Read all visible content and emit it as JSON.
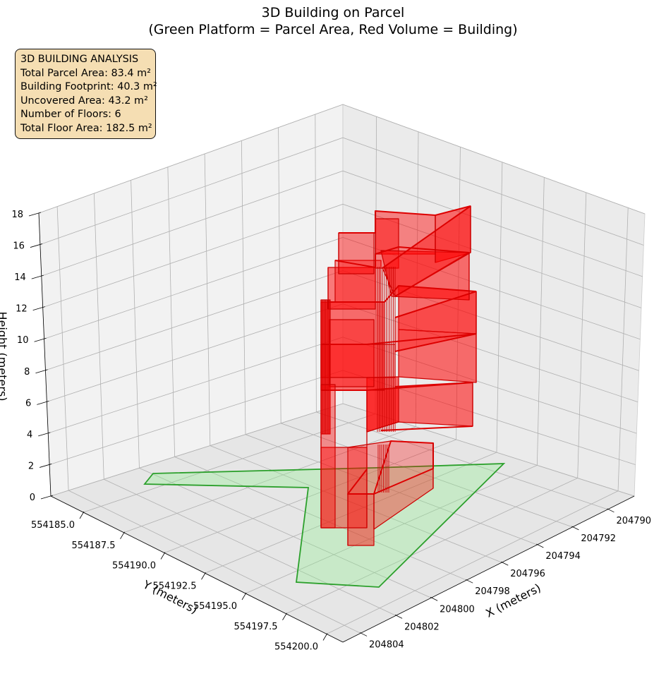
{
  "title_line1": "3D Building on Parcel",
  "title_line2": "(Green Platform = Parcel Area, Red Volume = Building)",
  "info_box": {
    "heading": "3D BUILDING ANALYSIS",
    "total_parcel_area": "Total Parcel Area: 83.4 m²",
    "building_footprint": "Building Footprint: 40.3 m²",
    "uncovered_area": "Uncovered Area: 43.2 m²",
    "floors": "Number of Floors: 6",
    "total_floor_area": "Total Floor Area: 182.5 m²"
  },
  "chart_data": {
    "type": "3d-extrusion",
    "title": "3D Building on Parcel\n(Green Platform = Parcel Area, Red Volume = Building)",
    "xlabel": "X (meters)",
    "ylabel": "Y (meters)",
    "zlabel": "Height (meters)",
    "xlim": [
      204788.5,
      204805
    ],
    "ylim": [
      554183,
      554201
    ],
    "zlim": [
      0,
      18
    ],
    "x_ticks": [
      "204790",
      "204792",
      "204794",
      "204796",
      "204798",
      "204800",
      "204802",
      "204804"
    ],
    "y_ticks": [
      "554185.0",
      "554187.5",
      "554190.0",
      "554192.5",
      "554195.0",
      "554197.5",
      "554200.0"
    ],
    "z_ticks": [
      "0",
      "2",
      "4",
      "6",
      "8",
      "10",
      "12",
      "14",
      "16",
      "18"
    ],
    "grid": true,
    "parcel_color": "#2ca02c",
    "building_color": "#ff0000",
    "number_of_floors": 6,
    "total_parcel_area_m2": 83.4,
    "building_footprint_m2": 40.3,
    "uncovered_area_m2": 43.2,
    "total_floor_area_m2": 182.5
  }
}
